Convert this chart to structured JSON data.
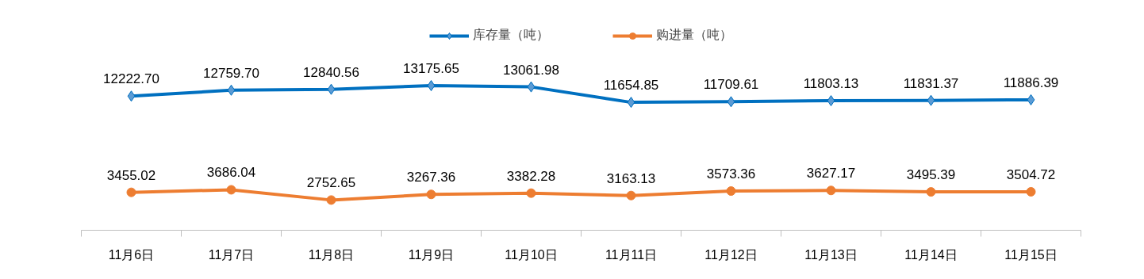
{
  "chart_data": {
    "type": "line",
    "categories": [
      "11月6日",
      "11月7日",
      "11月8日",
      "11月9日",
      "11月10日",
      "11月11日",
      "11月12日",
      "11月13日",
      "11月14日",
      "11月15日"
    ],
    "series": [
      {
        "name": "库存量（吨）",
        "color": "#0070c0",
        "marker": "diamond",
        "values": [
          12222.7,
          12759.7,
          12840.56,
          13175.65,
          13061.98,
          11654.85,
          11709.61,
          11803.13,
          11831.37,
          11886.39
        ],
        "value_labels": [
          "12222.70",
          "12759.70",
          "12840.56",
          "13175.65",
          "13061.98",
          "11654.85",
          "11709.61",
          "11803.13",
          "11831.37",
          "11886.39"
        ]
      },
      {
        "name": "购进量（吨）",
        "color": "#ed7d31",
        "marker": "circle",
        "values": [
          3455.02,
          3686.04,
          2752.65,
          3267.36,
          3382.28,
          3163.13,
          3573.36,
          3627.17,
          3495.39,
          3504.72
        ],
        "value_labels": [
          "3455.02",
          "3686.04",
          "2752.65",
          "3267.36",
          "3382.28",
          "3163.13",
          "3573.36",
          "3627.17",
          "3495.39",
          "3504.72"
        ]
      }
    ],
    "tick_labels": "x",
    "legend": "top",
    "grid": false
  }
}
